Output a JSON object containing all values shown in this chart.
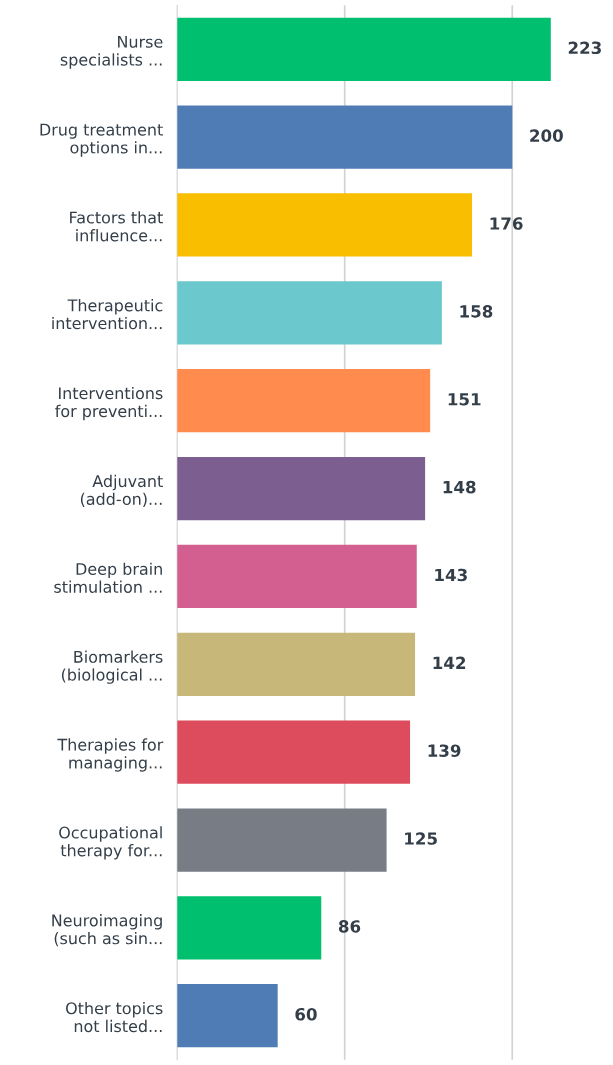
{
  "chart_data": {
    "type": "bar",
    "orientation": "horizontal",
    "categories": [
      "Nurse\nspecialists ...",
      "Drug treatment\noptions in...",
      "Factors that\ninfluence...",
      "Therapeutic\nintervention...",
      "Interventions\nfor preventi...",
      "Adjuvant\n(add-on)...",
      "Deep brain\nstimulation ...",
      "Biomarkers\n(biological ...",
      "Therapies for\nmanaging...",
      "Occupational\ntherapy for...",
      "Neuroimaging\n(such as sin...",
      "Other topics\nnot listed..."
    ],
    "values": [
      223,
      200,
      176,
      158,
      151,
      148,
      143,
      142,
      139,
      125,
      86,
      60
    ],
    "colors": [
      "#00bf6f",
      "#507cb6",
      "#f9be00",
      "#6bc8cd",
      "#ff8b4f",
      "#7d5e90",
      "#d25f90",
      "#c7b879",
      "#dc4c5c",
      "#787d85",
      "#00bf6f",
      "#507cb6"
    ],
    "data_labels": true,
    "ref_lines": [
      {
        "axis": "x",
        "value": 100,
        "color": "#d0d2d3"
      },
      {
        "axis": "x",
        "value": 200,
        "color": "#d0d2d3"
      }
    ],
    "tick_labels": "y"
  }
}
